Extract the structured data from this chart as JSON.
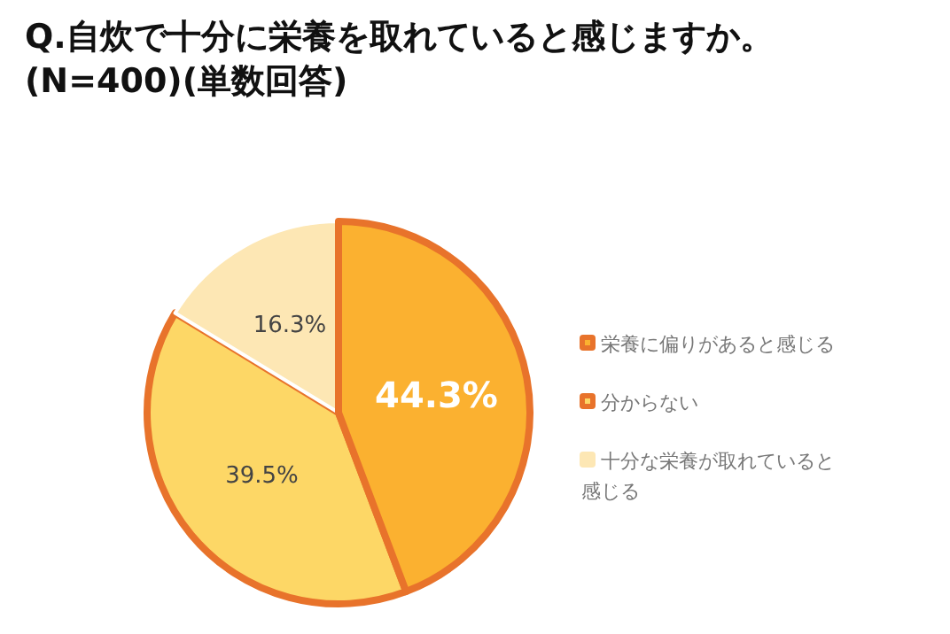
{
  "chart_data": {
    "type": "pie",
    "title": "Q.自炊で十分に栄養を取れていると感じますか。\n(N=400)(単数回答)",
    "categories": [
      "栄養に偏りがあると感じる",
      "分からない",
      "十分な栄養が取れていると感じる"
    ],
    "values": [
      44.3,
      39.5,
      16.3
    ],
    "colors": [
      "#fbb130",
      "#fdd766",
      "#fde7b4"
    ],
    "value_labels": [
      "44.3%",
      "39.5%",
      "16.3%"
    ],
    "legend": "right"
  }
}
